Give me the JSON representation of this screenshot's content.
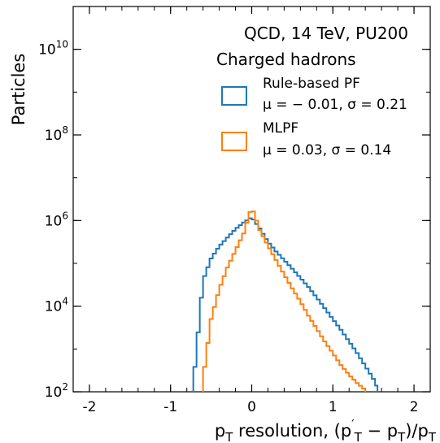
{
  "chart_data": {
    "type": "histogram-step",
    "xlabel": "p_T resolution, (p′_T − p_T)/p_T",
    "ylabel": "Particles",
    "xlim": [
      -2.2,
      2.2
    ],
    "ylim": [
      100,
      100000000000
    ],
    "yscale": "log",
    "x_ticks": [
      -2,
      -1,
      0,
      1,
      2
    ],
    "x_tick_labels": [
      "-2",
      "-1",
      "0",
      "1",
      "2"
    ],
    "y_ticks": [
      100,
      10000,
      1000000,
      100000000,
      10000000000
    ],
    "y_tick_labels": [
      {
        "base": "10",
        "exp": "2"
      },
      {
        "base": "10",
        "exp": "4"
      },
      {
        "base": "10",
        "exp": "6"
      },
      {
        "base": "10",
        "exp": "8"
      },
      {
        "base": "10",
        "exp": "10"
      }
    ],
    "annotations": [
      "QCD, 14 TeV, PU200",
      "Charged hadrons"
    ],
    "legend_position": "top-right",
    "series": [
      {
        "name": "Rule-based PF",
        "stats": "μ = − 0.01,  σ = 0.21",
        "color": "#1f77b4",
        "points": [
          [
            -0.72,
            150.0
          ],
          [
            -0.6,
            40000.0
          ],
          [
            -0.5,
            130000.0
          ],
          [
            -0.4,
            250000.0
          ],
          [
            -0.3,
            400000.0
          ],
          [
            -0.2,
            630000.0
          ],
          [
            -0.1,
            900000.0
          ],
          [
            0.0,
            1200000.0
          ],
          [
            0.1,
            650000.0
          ],
          [
            0.2,
            320000.0
          ],
          [
            0.3,
            190000.0
          ],
          [
            0.4,
            120000.0
          ],
          [
            0.5,
            75000.0
          ],
          [
            0.6,
            46000.0
          ],
          [
            0.7,
            28000.0
          ],
          [
            0.8,
            16000.0
          ],
          [
            0.9,
            9000.0
          ],
          [
            1.0,
            5000.0
          ],
          [
            1.1,
            2800.0
          ],
          [
            1.2,
            1500.0
          ],
          [
            1.3,
            800.0
          ],
          [
            1.4,
            400.0
          ],
          [
            1.5,
            200.0
          ],
          [
            1.55,
            120.0
          ]
        ]
      },
      {
        "name": "MLPF",
        "stats": "μ = 0.03,  σ = 0.14",
        "color": "#ff7f0e",
        "points": [
          [
            -0.6,
            200.0
          ],
          [
            -0.5,
            5000.0
          ],
          [
            -0.4,
            25000.0
          ],
          [
            -0.3,
            80000.0
          ],
          [
            -0.2,
            200000.0
          ],
          [
            -0.1,
            500000.0
          ],
          [
            0.0,
            2100000.0
          ],
          [
            0.1,
            600000.0
          ],
          [
            0.2,
            260000.0
          ],
          [
            0.3,
            120000.0
          ],
          [
            0.4,
            55000.0
          ],
          [
            0.5,
            26000.0
          ],
          [
            0.6,
            13000.0
          ],
          [
            0.7,
            6000.0
          ],
          [
            0.8,
            3000.0
          ],
          [
            0.9,
            1500.0
          ],
          [
            1.0,
            800.0
          ],
          [
            1.1,
            420.0
          ],
          [
            1.2,
            250.0
          ],
          [
            1.3,
            160.0
          ],
          [
            1.4,
            110.0
          ]
        ]
      }
    ]
  }
}
